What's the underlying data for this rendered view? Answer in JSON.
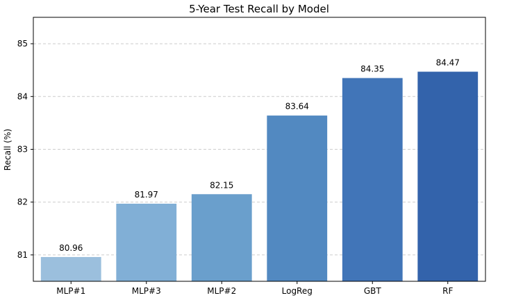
{
  "chart_data": {
    "type": "bar",
    "title": "5-Year Test Recall by Model",
    "xlabel": "",
    "ylabel": "Recall (%)",
    "categories": [
      "MLP#1",
      "MLP#3",
      "MLP#2",
      "LogReg",
      "GBT",
      "RF"
    ],
    "values": [
      80.96,
      81.97,
      82.15,
      83.64,
      84.35,
      84.47
    ],
    "data_labels": [
      "80.96",
      "81.97",
      "82.15",
      "83.64",
      "84.35",
      "84.47"
    ],
    "ylim": [
      80.5,
      85.5
    ],
    "yticks": [
      81,
      82,
      83,
      84,
      85
    ],
    "grid": "y-dashed",
    "legend": "none",
    "colors": [
      "#9bbfdd",
      "#81afd6",
      "#6a9fcc",
      "#5289c1",
      "#4175b8",
      "#3363ab"
    ]
  }
}
